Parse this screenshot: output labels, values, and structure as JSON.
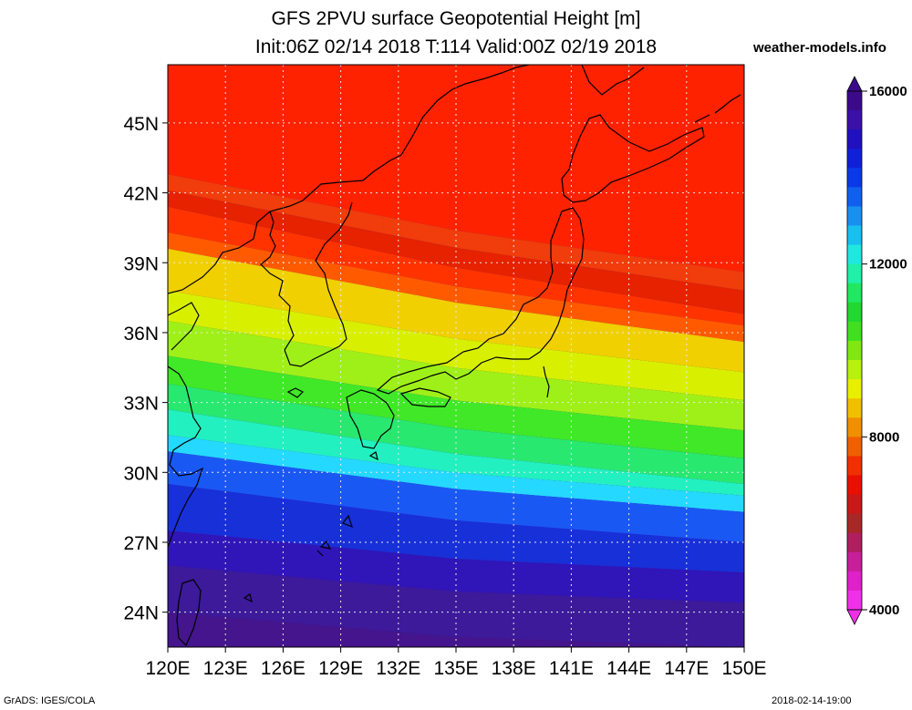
{
  "title": {
    "line1": "GFS 2PVU surface Geopotential Height [m]",
    "line2": "Init:06Z 02/14 2018 T:114 Valid:00Z 02/19 2018"
  },
  "brand": "weather-models.info",
  "footer": {
    "left": "GrADS: IGES/COLA",
    "right": "2018-02-14-19:00"
  },
  "map": {
    "region": "Japan / Korea / East Asia",
    "variable": "2PVU surface geopotential height",
    "unit": "m",
    "lat_labels": [
      "45N",
      "42N",
      "39N",
      "36N",
      "33N",
      "30N",
      "27N",
      "24N"
    ],
    "lat_values": [
      45,
      42,
      39,
      36,
      33,
      30,
      27,
      24
    ],
    "lon_labels": [
      "120E",
      "123E",
      "126E",
      "129E",
      "132E",
      "135E",
      "138E",
      "141E",
      "144E",
      "147E",
      "150E"
    ],
    "lon_values": [
      120,
      123,
      126,
      129,
      132,
      135,
      138,
      141,
      144,
      147,
      150
    ],
    "lat_range": [
      22.5,
      47.5
    ],
    "lon_range": [
      120,
      150
    ],
    "gridlines": "dotted",
    "features": [
      "coastlines"
    ]
  },
  "colorbar": {
    "labels": [
      "16000",
      "12000",
      "8000",
      "4000"
    ],
    "values": [
      16000,
      12000,
      8000,
      4000
    ],
    "min": 4000,
    "max": 16000,
    "colors_top_to_bottom": [
      "#3a0a8a",
      "#3a10a8",
      "#2010c0",
      "#1020d8",
      "#0a3ae8",
      "#1060f0",
      "#1890f0",
      "#18c0f0",
      "#20e8e0",
      "#20f0a8",
      "#20e860",
      "#20d830",
      "#40e020",
      "#80e810",
      "#b8f010",
      "#e8f000",
      "#f0c000",
      "#f09000",
      "#f06000",
      "#f03000",
      "#e81000",
      "#c81818",
      "#a82828",
      "#b01e60",
      "#c81e9a",
      "#e020c8",
      "#f030e8"
    ]
  },
  "bands": {
    "colors": [
      "#ff2200",
      "#f13c0b",
      "#e62200",
      "#ff3300",
      "#ff5a00",
      "#f0d000",
      "#d8f000",
      "#9ff018",
      "#40e828",
      "#28e870",
      "#22f0c0",
      "#25d8ff",
      "#1a58f4",
      "#1830d8",
      "#3015b8",
      "#3c1a9a",
      "#44158c"
    ],
    "west_lat": [
      42.8,
      42.1,
      41.4,
      40.3,
      39.6,
      37.8,
      36.5,
      35.0,
      33.8,
      32.7,
      31.6,
      30.9,
      29.5,
      27.5,
      26.0,
      24.0
    ],
    "east_lat": [
      38.6,
      37.8,
      36.8,
      36.3,
      35.6,
      34.3,
      33.1,
      31.8,
      30.6,
      29.5,
      29.0,
      28.3,
      27.0,
      25.7,
      24.4,
      22.5
    ]
  }
}
